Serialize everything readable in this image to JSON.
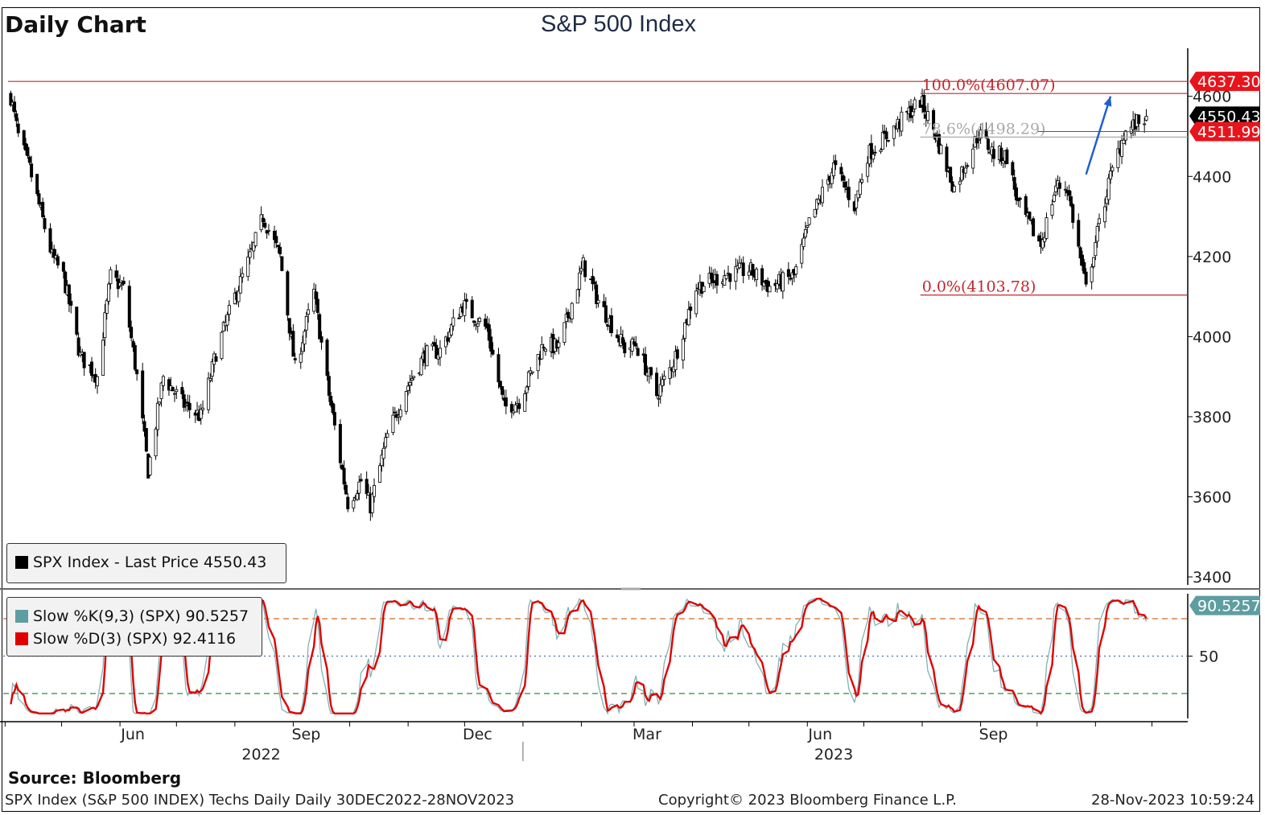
{
  "header": {
    "left_title": "Daily Chart",
    "center_title": "S&P 500 Index"
  },
  "source": "Source: Bloomberg",
  "footer": {
    "left": "SPX Index (S&P 500 INDEX) Techs Daily  Daily 30DEC2022-28NOV2023",
    "center": "Copyright© 2023 Bloomberg Finance L.P.",
    "right": "28-Nov-2023 10:59:24"
  },
  "legend_price": {
    "label": "SPX Index - Last Price 4550.43",
    "color": "#000000"
  },
  "legend_stoch": [
    {
      "label": "Slow %K(9,3) (SPX) 90.5257",
      "color": "#5f9ea0"
    },
    {
      "label": "Slow %D(3) (SPX)   92.4116",
      "color": "#e00000"
    }
  ],
  "chart_data": [
    {
      "type": "candlestick",
      "title": "S&P 500 Index",
      "ylim": [
        3380,
        4720
      ],
      "yticks": [
        3400,
        3600,
        3800,
        4000,
        4200,
        4400,
        4600
      ],
      "x_month_labels": [
        "Jun",
        "Sep",
        "Dec",
        "Mar",
        "Jun",
        "Sep"
      ],
      "x_year_labels": [
        "2022",
        "2023"
      ],
      "anchors": [
        [
          "2022-04-04",
          4600
        ],
        [
          "2022-04-08",
          4500
        ],
        [
          "2022-04-14",
          4420
        ],
        [
          "2022-04-26",
          4200
        ],
        [
          "2022-05-02",
          4150
        ],
        [
          "2022-05-11",
          3950
        ],
        [
          "2022-05-20",
          3900
        ],
        [
          "2022-05-27",
          4150
        ],
        [
          "2022-06-03",
          4120
        ],
        [
          "2022-06-10",
          3900
        ],
        [
          "2022-06-16",
          3665
        ],
        [
          "2022-06-24",
          3900
        ],
        [
          "2022-07-05",
          3830
        ],
        [
          "2022-07-14",
          3800
        ],
        [
          "2022-07-22",
          3960
        ],
        [
          "2022-08-01",
          4100
        ],
        [
          "2022-08-10",
          4210
        ],
        [
          "2022-08-16",
          4300
        ],
        [
          "2022-08-25",
          4200
        ],
        [
          "2022-09-02",
          3920
        ],
        [
          "2022-09-12",
          4110
        ],
        [
          "2022-09-20",
          3855
        ],
        [
          "2022-09-30",
          3585
        ],
        [
          "2022-10-07",
          3640
        ],
        [
          "2022-10-12",
          3577
        ],
        [
          "2022-10-21",
          3752
        ],
        [
          "2022-10-31",
          3871
        ],
        [
          "2022-11-10",
          3956
        ],
        [
          "2022-11-18",
          3965
        ],
        [
          "2022-11-30",
          4080
        ],
        [
          "2022-12-13",
          4019
        ],
        [
          "2022-12-22",
          3822
        ],
        [
          "2022-12-30",
          3840
        ],
        [
          "2023-01-12",
          3983
        ],
        [
          "2023-01-20",
          3972
        ],
        [
          "2023-02-02",
          4179
        ],
        [
          "2023-02-10",
          4090
        ],
        [
          "2023-02-24",
          3970
        ],
        [
          "2023-03-02",
          3981
        ],
        [
          "2023-03-13",
          3855
        ],
        [
          "2023-03-22",
          3937
        ],
        [
          "2023-04-03",
          4124
        ],
        [
          "2023-04-18",
          4154
        ],
        [
          "2023-05-01",
          4167
        ],
        [
          "2023-05-12",
          4124
        ],
        [
          "2023-05-25",
          4151
        ],
        [
          "2023-06-02",
          4282
        ],
        [
          "2023-06-15",
          4425
        ],
        [
          "2023-06-26",
          4328
        ],
        [
          "2023-07-03",
          4455
        ],
        [
          "2023-07-14",
          4505
        ],
        [
          "2023-07-31",
          4589
        ],
        [
          "2023-08-07",
          4518
        ],
        [
          "2023-08-18",
          4370
        ],
        [
          "2023-08-31",
          4508
        ],
        [
          "2023-09-08",
          4457
        ],
        [
          "2023-09-15",
          4450
        ],
        [
          "2023-09-21",
          4330
        ],
        [
          "2023-10-03",
          4229
        ],
        [
          "2023-10-11",
          4376
        ],
        [
          "2023-10-17",
          4373
        ],
        [
          "2023-10-27",
          4117
        ],
        [
          "2023-11-01",
          4237
        ],
        [
          "2023-11-08",
          4382
        ],
        [
          "2023-11-16",
          4508
        ],
        [
          "2023-11-28",
          4550.43
        ]
      ],
      "hlines": [
        {
          "label": "100.0%(4607.07)",
          "y": 4607.07,
          "color": "#c0282d"
        },
        {
          "label": "78.6%(4498.29)",
          "y": 4498.29,
          "color": "#a9a9a9"
        },
        {
          "label": "0.0%(4103.78)",
          "y": 4103.78,
          "color": "#c0282d"
        }
      ],
      "top_line": {
        "y": 4637.3,
        "color": "#c0282d"
      },
      "price_tags": [
        {
          "label": "4637.30",
          "y": 4637.3,
          "bg": "#e8141c"
        },
        {
          "label": "4550.43",
          "y": 4550.43,
          "bg": "#000000"
        },
        {
          "label": "4511.99",
          "y": 4511.99,
          "bg": "#e8141c"
        }
      ],
      "arrow": {
        "from": [
          "2023-10-27",
          4405
        ],
        "to": [
          "2023-11-09",
          4600
        ],
        "color": "#1f5fd1"
      }
    },
    {
      "type": "line",
      "title": "Stochastic",
      "ylim": [
        0,
        100
      ],
      "yticks": [
        50
      ],
      "ref_lines": [
        80,
        50,
        20
      ],
      "series": [
        {
          "name": "Slow %K(9,3) (SPX)",
          "last": 90.5257
        },
        {
          "name": "Slow %D(3) (SPX)",
          "last": 92.4116
        }
      ],
      "value_tag": "90.5257"
    }
  ]
}
